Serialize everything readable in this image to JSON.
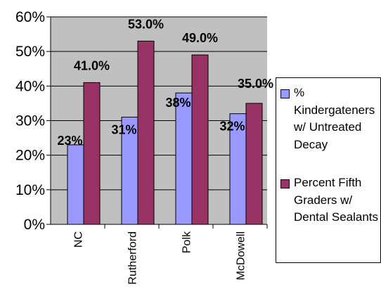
{
  "chart_data": {
    "type": "bar",
    "categories": [
      "NC",
      "Rutherford",
      "Polk",
      "McDowell"
    ],
    "series": [
      {
        "name": "% Kindergateners w/ Untreated Decay",
        "values": [
          23,
          31,
          38,
          32
        ],
        "labels": [
          "23%",
          "31%",
          "38%",
          "32%"
        ],
        "color": "#9999ff"
      },
      {
        "name": "Percent Fifth Graders w/ Dental Sealants",
        "values": [
          41,
          53,
          49,
          35
        ],
        "labels": [
          "41.0%",
          "53.0%",
          "49.0%",
          "35.0%"
        ],
        "color": "#993366"
      }
    ],
    "ylim": [
      0,
      60
    ],
    "yticks": [
      0,
      10,
      20,
      30,
      40,
      50,
      60
    ],
    "ytick_labels": [
      "0%",
      "10%",
      "20%",
      "30%",
      "40%",
      "50%",
      "60%"
    ],
    "plot_background": "#c0c0c0",
    "grid": true,
    "legend_position": "right"
  }
}
